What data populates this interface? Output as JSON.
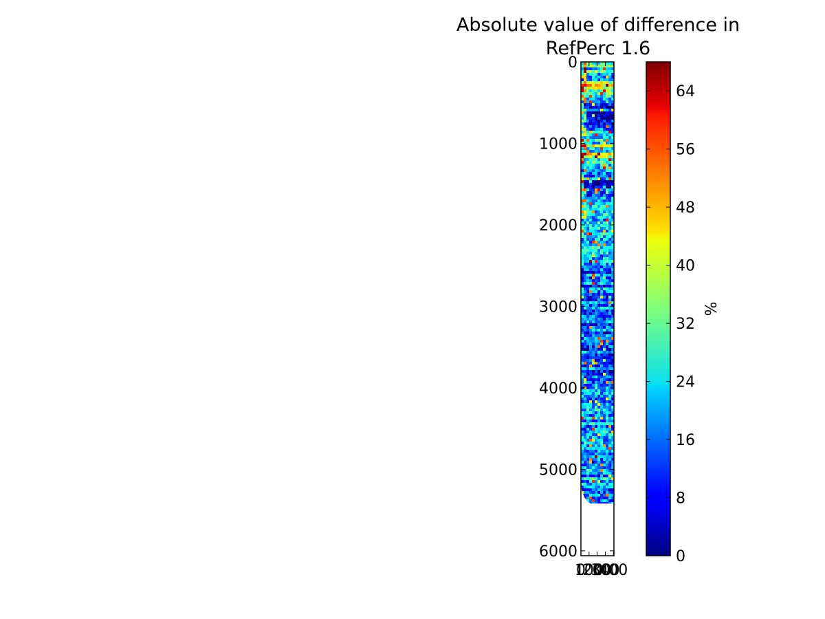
{
  "chart_data": {
    "type": "heatmap",
    "title_lines": [
      "Absolute value of difference in",
      "RefPerc 1.6"
    ],
    "y_axis": {
      "range": [
        0,
        6060
      ],
      "inverted": true,
      "ticks": [
        0,
        1000,
        2000,
        3000,
        4000,
        5000,
        6000
      ],
      "tick_labels": [
        "0",
        "1000",
        "2000",
        "3000",
        "4000",
        "5000",
        "6000"
      ]
    },
    "x_axis": {
      "range": [
        0,
        406
      ],
      "ticks": [
        0,
        100,
        200,
        300,
        400
      ],
      "tick_labels": [
        "0",
        "100",
        "200",
        "300",
        "400"
      ]
    },
    "data_extent_rows": 5420,
    "colorbar": {
      "colormap": "jet",
      "range": [
        0,
        68
      ],
      "ticks": [
        0,
        8,
        16,
        24,
        32,
        40,
        48,
        56,
        64
      ],
      "tick_labels": [
        "0",
        "8",
        "16",
        "24",
        "32",
        "40",
        "48",
        "56",
        "64"
      ],
      "label": "%"
    },
    "grid": false
  }
}
